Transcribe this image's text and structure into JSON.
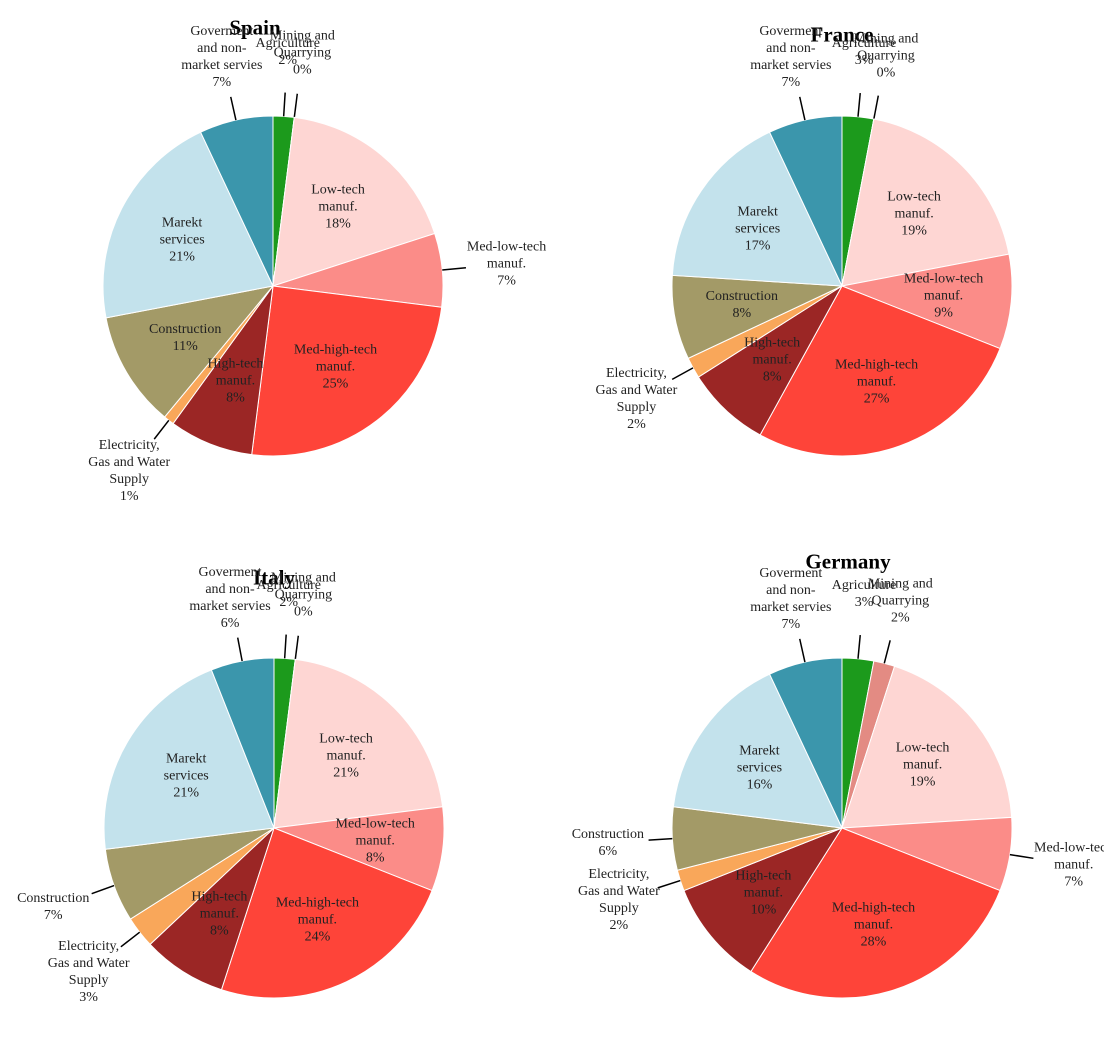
{
  "chart_data": [
    {
      "type": "pie",
      "title": "Spain",
      "categories": [
        "Agriculture",
        "Mining and Quarrying",
        "Low-tech manuf.",
        "Med-low-tech manuf.",
        "Med-high-tech manuf.",
        "High-tech manuf.",
        "Electricity, Gas and Water Supply",
        "Construction",
        "Marekt services",
        "Goverment and non-market servies"
      ],
      "values": [
        2,
        0,
        18,
        7,
        25,
        8,
        1,
        11,
        21,
        7
      ],
      "value_labels": [
        "2%",
        "0%",
        "18%",
        "7%",
        "25%",
        "8%",
        "1%",
        "11%",
        "21%",
        "7%"
      ],
      "colors": [
        "#1c9a1c",
        "#e38b83",
        "#fed6d3",
        "#fb8c88",
        "#fe4439",
        "#9b2625",
        "#f9a75a",
        "#a39a67",
        "#c3e2ec",
        "#3b96ac"
      ]
    },
    {
      "type": "pie",
      "title": "France",
      "categories": [
        "Agriculture",
        "Mining and Quarrying",
        "Low-tech manuf.",
        "Med-low-tech manuf.",
        "Med-high-tech manuf.",
        "High-tech manuf.",
        "Electricity, Gas and Water Supply",
        "Construction",
        "Marekt services",
        "Goverment and non-market servies"
      ],
      "values": [
        3,
        0,
        19,
        9,
        27,
        8,
        2,
        8,
        17,
        7
      ],
      "value_labels": [
        "3%",
        "0%",
        "19%",
        "9%",
        "27%",
        "8%",
        "2%",
        "8%",
        "17%",
        "7%"
      ],
      "colors": [
        "#1c9a1c",
        "#e38b83",
        "#fed6d3",
        "#fb8c88",
        "#fe4439",
        "#9b2625",
        "#f9a75a",
        "#a39a67",
        "#c3e2ec",
        "#3b96ac"
      ]
    },
    {
      "type": "pie",
      "title": "Italy",
      "categories": [
        "Agriculture",
        "Mining and Quarrying",
        "Low-tech manuf.",
        "Med-low-tech manuf.",
        "Med-high-tech manuf.",
        "High-tech manuf.",
        "Electricity, Gas and Water Supply",
        "Construction",
        "Marekt services",
        "Goverment and non-market servies"
      ],
      "values": [
        2,
        0,
        21,
        8,
        24,
        8,
        3,
        7,
        21,
        6
      ],
      "value_labels": [
        "2%",
        "0%",
        "21%",
        "8%",
        "24%",
        "8%",
        "3%",
        "7%",
        "21%",
        "6%"
      ],
      "colors": [
        "#1c9a1c",
        "#e38b83",
        "#fed6d3",
        "#fb8c88",
        "#fe4439",
        "#9b2625",
        "#f9a75a",
        "#a39a67",
        "#c3e2ec",
        "#3b96ac"
      ]
    },
    {
      "type": "pie",
      "title": "Germany",
      "categories": [
        "Agriculture",
        "Mining and Quarrying",
        "Low-tech manuf.",
        "Med-low-tech manuf.",
        "Med-high-tech manuf.",
        "High-tech manuf.",
        "Electricity, Gas and Water Supply",
        "Construction",
        "Marekt services",
        "Goverment and non-market servies"
      ],
      "values": [
        3,
        2,
        19,
        7,
        28,
        10,
        2,
        6,
        16,
        7
      ],
      "value_labels": [
        "3%",
        "2%",
        "19%",
        "7%",
        "28%",
        "10%",
        "2%",
        "6%",
        "16%",
        "7%"
      ],
      "colors": [
        "#1c9a1c",
        "#e38b83",
        "#fed6d3",
        "#fb8c88",
        "#fe4439",
        "#9b2625",
        "#f9a75a",
        "#a39a67",
        "#c3e2ec",
        "#3b96ac"
      ]
    }
  ]
}
